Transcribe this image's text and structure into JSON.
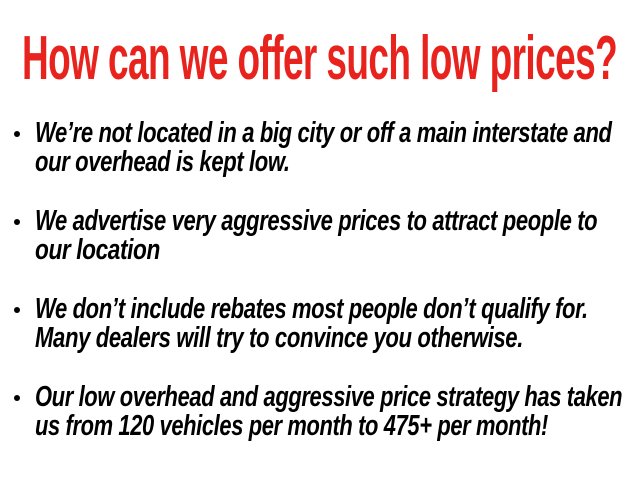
{
  "title": "How can we offer such low prices?",
  "title_color": "#e8231e",
  "bullets": [
    {
      "lines": [
        "We’re not located in a big city or off a main interstate and",
        "our overhead is kept low."
      ]
    },
    {
      "lines": [
        "We advertise very aggressive prices to attract people to",
        "our location"
      ]
    },
    {
      "lines": [
        "We don’t include rebates most people don’t qualify for.",
        "Many dealers will try to convince you otherwise."
      ]
    },
    {
      "lines": [
        "Our low overhead and aggressive price strategy has taken",
        "us from 120 vehicles per month to 475+ per month!"
      ]
    }
  ]
}
